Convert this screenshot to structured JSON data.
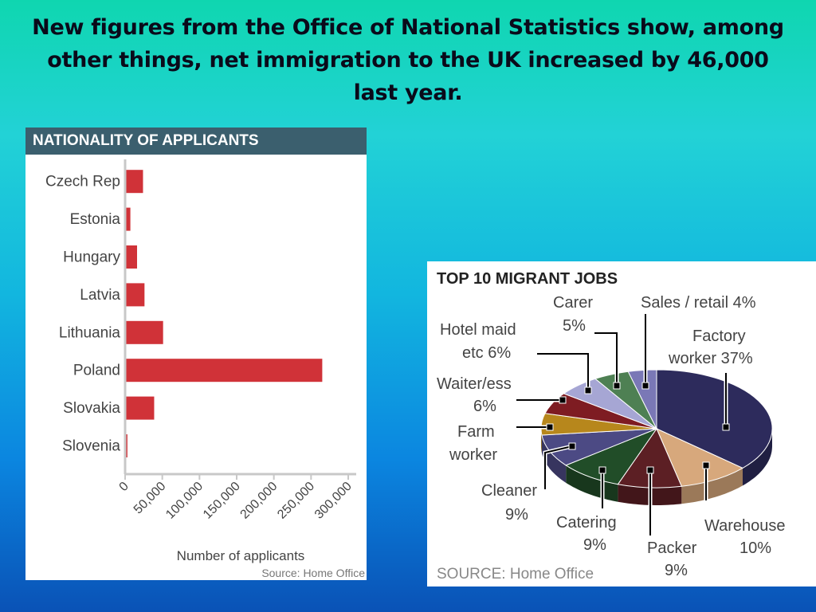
{
  "headline": "New figures from the Office of National Statistics show, among other things, net immigration to the UK increased by 46,000 last year.",
  "chart_data": [
    {
      "type": "bar",
      "orientation": "horizontal",
      "title": "NATIONALITY OF APPLICANTS",
      "categories": [
        "Czech Rep",
        "Estonia",
        "Hungary",
        "Latvia",
        "Lithuania",
        "Poland",
        "Slovakia",
        "Slovenia"
      ],
      "values": [
        23000,
        6000,
        15000,
        25000,
        50000,
        264000,
        38000,
        2000
      ],
      "xlabel": "Number of applicants",
      "xticks": [
        "0",
        "50,000",
        "100,000",
        "150,000",
        "200,000",
        "250,000",
        "300,000"
      ],
      "xlim": [
        0,
        300000
      ],
      "source": "Source: Home Office",
      "bar_color": "#d03238"
    },
    {
      "type": "pie",
      "title": "TOP 10 MIGRANT JOBS",
      "source": "SOURCE: Home Office",
      "slices": [
        {
          "label_lines": [
            "Factory",
            "worker 37%"
          ],
          "value": 37,
          "color": "#2d2b5c"
        },
        {
          "label_lines": [
            "Warehouse",
            "10%"
          ],
          "value": 10,
          "color": "#d7a87c"
        },
        {
          "label_lines": [
            "Packer",
            "9%"
          ],
          "value": 9,
          "color": "#5c1f24"
        },
        {
          "label_lines": [
            "Catering",
            "9%"
          ],
          "value": 9,
          "color": "#214d28"
        },
        {
          "label_lines": [
            "Cleaner",
            "9%"
          ],
          "value": 9,
          "color": "#4c4a84"
        },
        {
          "label_lines": [
            "Farm",
            "worker"
          ],
          "value": 6,
          "color": "#b7871c"
        },
        {
          "label_lines": [
            "Waiter/ess",
            "6%"
          ],
          "value": 6,
          "color": "#7e1c22"
        },
        {
          "label_lines": [
            "Hotel maid",
            "etc 6%"
          ],
          "value": 6,
          "color": "#a6a6d4"
        },
        {
          "label_lines": [
            "Carer",
            "5%"
          ],
          "value": 5,
          "color": "#4e8053"
        },
        {
          "label_lines": [
            "Sales / retail 4%"
          ],
          "value": 4,
          "color": "#7a78b6"
        }
      ]
    }
  ]
}
